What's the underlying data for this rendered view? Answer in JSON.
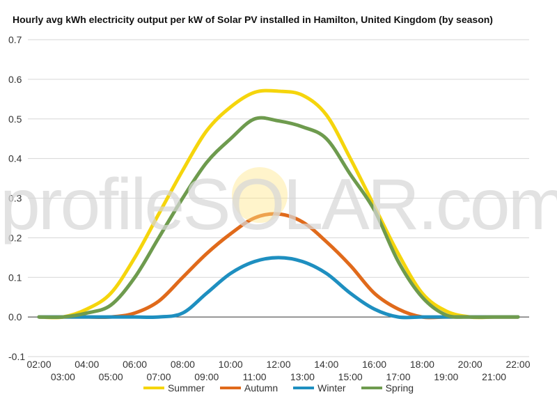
{
  "chart_data": {
    "type": "line",
    "title": "Hourly avg kWh electricity output per kW of Solar PV installed in Hamilton, United Kingdom (by season)",
    "watermark": "profileSOLAR.com",
    "x": [
      "02:00",
      "03:00",
      "04:00",
      "05:00",
      "06:00",
      "07:00",
      "08:00",
      "09:00",
      "10:00",
      "11:00",
      "12:00",
      "13:00",
      "14:00",
      "15:00",
      "16:00",
      "17:00",
      "18:00",
      "19:00",
      "20:00",
      "21:00",
      "22:00"
    ],
    "ylim": [
      -0.1,
      0.7
    ],
    "yticks": [
      "0.7",
      "0.6",
      "0.5",
      "0.4",
      "0.3",
      "0.2",
      "0.1",
      "0.0",
      "-0.1"
    ],
    "grid": true,
    "legend_position": "bottom",
    "series": [
      {
        "name": "Summer",
        "color": "#f5d50c",
        "values": [
          0.0,
          0.0,
          0.02,
          0.06,
          0.15,
          0.26,
          0.37,
          0.47,
          0.53,
          0.567,
          0.57,
          0.56,
          0.51,
          0.4,
          0.28,
          0.16,
          0.06,
          0.015,
          0.0,
          0.0,
          0.0
        ]
      },
      {
        "name": "Autumn",
        "color": "#e06a1b",
        "values": [
          0.0,
          0.0,
          0.0,
          0.0,
          0.01,
          0.04,
          0.1,
          0.16,
          0.21,
          0.25,
          0.26,
          0.24,
          0.19,
          0.13,
          0.06,
          0.02,
          0.0,
          0.0,
          0.0,
          0.0,
          0.0
        ]
      },
      {
        "name": "Winter",
        "color": "#1e8fc0",
        "values": [
          0.0,
          0.0,
          0.0,
          0.0,
          0.0,
          0.0,
          0.01,
          0.06,
          0.11,
          0.14,
          0.15,
          0.14,
          0.11,
          0.06,
          0.02,
          0.0,
          0.0,
          0.0,
          0.0,
          0.0,
          0.0
        ]
      },
      {
        "name": "Spring",
        "color": "#6e9b4e",
        "values": [
          0.0,
          0.0,
          0.01,
          0.03,
          0.1,
          0.2,
          0.3,
          0.39,
          0.45,
          0.5,
          0.495,
          0.48,
          0.45,
          0.36,
          0.27,
          0.14,
          0.05,
          0.005,
          0.0,
          0.0,
          0.0
        ]
      }
    ]
  }
}
